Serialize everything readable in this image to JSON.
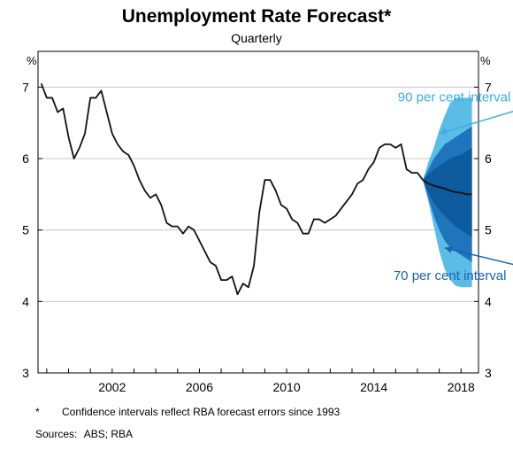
{
  "chart_data": {
    "type": "line",
    "title": "Unemployment Rate Forecast*",
    "subtitle": "Quarterly",
    "unit_left": "%",
    "unit_right": "%",
    "xlim": [
      1998.6,
      2018.8
    ],
    "ylim": [
      3,
      7.5
    ],
    "x_ticks": [
      2002,
      2006,
      2010,
      2014,
      2018
    ],
    "y_ticks": [
      3,
      4,
      5,
      6,
      7
    ],
    "grid": true,
    "historical": {
      "x": [
        1998.75,
        1999.0,
        1999.25,
        1999.5,
        1999.75,
        2000.0,
        2000.25,
        2000.5,
        2000.75,
        2001.0,
        2001.25,
        2001.5,
        2001.75,
        2002.0,
        2002.25,
        2002.5,
        2002.75,
        2003.0,
        2003.25,
        2003.5,
        2003.75,
        2004.0,
        2004.25,
        2004.5,
        2004.75,
        2005.0,
        2005.25,
        2005.5,
        2005.75,
        2006.0,
        2006.25,
        2006.5,
        2006.75,
        2007.0,
        2007.25,
        2007.5,
        2007.75,
        2008.0,
        2008.25,
        2008.5,
        2008.75,
        2009.0,
        2009.25,
        2009.5,
        2009.75,
        2010.0,
        2010.25,
        2010.5,
        2010.75,
        2011.0,
        2011.25,
        2011.5,
        2011.75,
        2012.0,
        2012.25,
        2012.5,
        2012.75,
        2013.0,
        2013.25,
        2013.5,
        2013.75,
        2014.0,
        2014.25,
        2014.5,
        2014.75,
        2015.0,
        2015.25,
        2015.5,
        2015.75,
        2016.0,
        2016.25
      ],
      "y": [
        7.05,
        6.85,
        6.85,
        6.65,
        6.7,
        6.3,
        6.0,
        6.15,
        6.35,
        6.85,
        6.85,
        6.95,
        6.65,
        6.35,
        6.2,
        6.1,
        6.05,
        5.9,
        5.7,
        5.55,
        5.45,
        5.5,
        5.35,
        5.1,
        5.05,
        5.05,
        4.95,
        5.05,
        5.0,
        4.85,
        4.7,
        4.55,
        4.5,
        4.3,
        4.3,
        4.35,
        4.1,
        4.25,
        4.2,
        4.5,
        5.25,
        5.7,
        5.7,
        5.55,
        5.35,
        5.3,
        5.15,
        5.1,
        4.95,
        4.95,
        5.15,
        5.15,
        5.1,
        5.15,
        5.2,
        5.3,
        5.4,
        5.5,
        5.65,
        5.7,
        5.85,
        5.95,
        6.15,
        6.2,
        6.2,
        6.15,
        6.2,
        5.85,
        5.8,
        5.8,
        5.7
      ]
    },
    "forecast": {
      "x": [
        2016.25,
        2016.5,
        2016.75,
        2017.0,
        2017.25,
        2017.5,
        2017.75,
        2018.0,
        2018.25,
        2018.5
      ],
      "y": [
        5.7,
        5.65,
        5.62,
        5.6,
        5.58,
        5.55,
        5.53,
        5.52,
        5.5,
        5.5
      ]
    },
    "bands": [
      {
        "name": "90 per cent interval",
        "color": "#5bbde6",
        "x": [
          2016.25,
          2016.5,
          2016.75,
          2017.0,
          2017.25,
          2017.5,
          2017.75,
          2018.0,
          2018.25,
          2018.5
        ],
        "upper": [
          5.7,
          5.95,
          6.15,
          6.4,
          6.6,
          6.78,
          6.85,
          6.85,
          6.85,
          6.85
        ],
        "lower": [
          5.7,
          5.4,
          5.05,
          4.7,
          4.45,
          4.3,
          4.22,
          4.2,
          4.2,
          4.2
        ]
      },
      {
        "name": "70 per cent interval",
        "color": "#1f74bb",
        "x": [
          2016.25,
          2016.5,
          2016.75,
          2017.0,
          2017.25,
          2017.5,
          2017.75,
          2018.0,
          2018.25,
          2018.5
        ],
        "upper": [
          5.7,
          5.85,
          6.0,
          6.1,
          6.2,
          6.25,
          6.3,
          6.35,
          6.4,
          6.45
        ],
        "lower": [
          5.7,
          5.45,
          5.2,
          5.0,
          4.85,
          4.75,
          4.7,
          4.65,
          4.6,
          4.55
        ]
      }
    ],
    "dark_core": {
      "color": "#0d5a9c",
      "x": [
        2016.25,
        2016.5,
        2016.75,
        2017.0,
        2017.25,
        2017.5,
        2017.75,
        2018.0,
        2018.25,
        2018.5
      ],
      "upper": [
        5.7,
        5.78,
        5.85,
        5.9,
        5.95,
        6.0,
        6.03,
        6.05,
        6.1,
        6.15
      ],
      "lower": [
        5.7,
        5.52,
        5.38,
        5.28,
        5.2,
        5.12,
        5.05,
        5.0,
        4.95,
        4.9
      ]
    },
    "annotations": [
      {
        "text": "90 per cent interval",
        "color": "#3aaee0",
        "x": 2015.1,
        "y": 6.8,
        "arrow_to": [
          2017.0,
          6.35
        ]
      },
      {
        "text": "70 per cent interval",
        "color": "#1565b0",
        "x": 2014.9,
        "y": 4.3,
        "arrow_to": [
          2017.25,
          4.75
        ]
      }
    ],
    "footnote": "Confidence intervals reflect RBA forecast errors since 1993",
    "footnote_marker": "*",
    "sources_label": "Sources:",
    "sources": "ABS; RBA"
  }
}
